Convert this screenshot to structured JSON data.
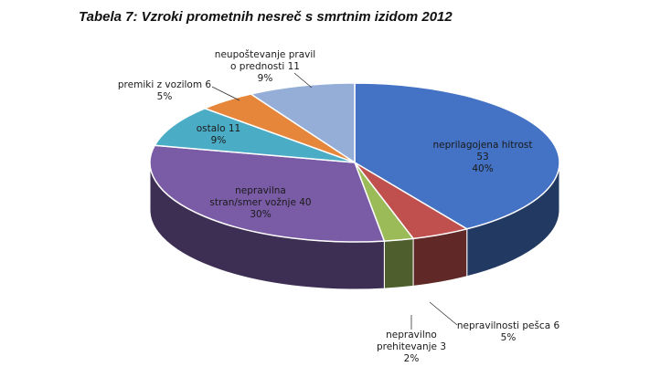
{
  "chart_data": {
    "type": "pie",
    "title": "Tabela 7: Vzroki prometnih nesreč s smrtnim izidom 2012",
    "slices": [
      {
        "label": "neprilagojena hitrost",
        "value": 53,
        "percent": "40%",
        "color": "#4472c4"
      },
      {
        "label": "nepravilnosti pešca",
        "value": 6,
        "percent": "5%",
        "color": "#c0504d"
      },
      {
        "label": "nepravilno prehitevanje",
        "value": 3,
        "percent": "2%",
        "color": "#9bbb59"
      },
      {
        "label": "nepravilna stran/smer vožnje",
        "value": 40,
        "percent": "30%",
        "color": "#7a5ca6"
      },
      {
        "label": "ostalo",
        "value": 11,
        "percent": "9%",
        "color": "#4bacc6"
      },
      {
        "label": "premiki z vozilom",
        "value": 6,
        "percent": "5%",
        "color": "#e5863b"
      },
      {
        "label": "neupoštevanje pravil o prednosti",
        "value": 11,
        "percent": "9%",
        "color": "#95aed8"
      }
    ],
    "label_lines": [
      [
        "neprilagojena hitrost",
        "53",
        "40%"
      ],
      [
        "nepravilnosti pešca  6",
        "5%"
      ],
      [
        "nepravilno",
        "prehitevanje 3",
        "2%"
      ],
      [
        "nepravilna",
        "stran/smer vožnje 40",
        "30%"
      ],
      [
        "ostalo 11",
        "9%"
      ],
      [
        "premiki z vozilom 6",
        "5%"
      ],
      [
        "neupoštevanje pravil",
        "o prednosti 11",
        "9%"
      ]
    ]
  }
}
